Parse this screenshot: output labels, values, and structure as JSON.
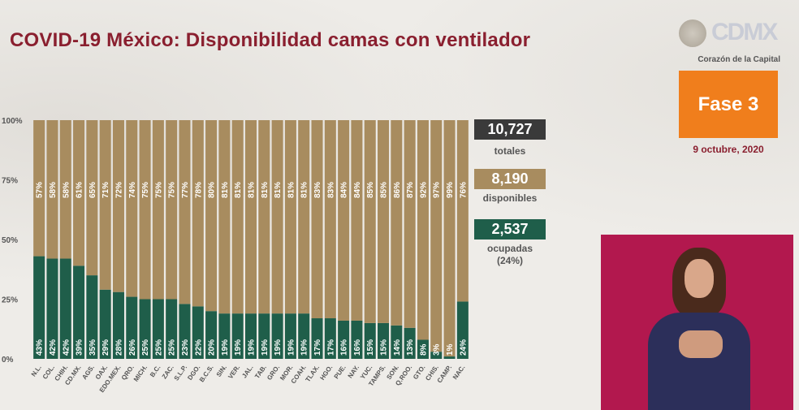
{
  "header": {
    "title": "COVID-19 México: Disponibilidad camas con ventilador",
    "logo_subtitle": "Corazón de la Capital",
    "logo_text": "CDMX",
    "phase": "Fase 3",
    "date": "9 octubre, 2020"
  },
  "stats": {
    "total_value": "10,727",
    "total_label": "totales",
    "available_value": "8,190",
    "available_label": "disponibles",
    "occupied_value": "2,537",
    "occupied_label": "ocupadas",
    "occupied_pct": "(24%)"
  },
  "colors": {
    "occupied": "#1f5e4a",
    "available": "#a88c5f",
    "title": "#8a1f2f",
    "total_box": "#3a3a3a",
    "phase_box": "#f07e1c",
    "interpreter_bg": "#b2184e"
  },
  "chart_data": {
    "type": "bar",
    "stacked": true,
    "orientation": "vertical",
    "categories": [
      "N.L.",
      "COL.",
      "CHIH.",
      "CD.MX.",
      "AGS.",
      "OAX.",
      "EDO.MEX.",
      "QRO.",
      "MICH.",
      "B.C.",
      "ZAC.",
      "S.L.P.",
      "DGO.",
      "B.C.S.",
      "SIN.",
      "VER.",
      "JAL.",
      "TAB.",
      "GRO.",
      "MOR.",
      "COAH.",
      "TLAX.",
      "HGO.",
      "PUE.",
      "NAY.",
      "YUC.",
      "TAMPS.",
      "SON.",
      "Q.ROO.",
      "GTO.",
      "CHIS.",
      "CAMP.",
      "NAC."
    ],
    "series": [
      {
        "values": [
          43,
          42,
          42,
          39,
          35,
          29,
          28,
          26,
          25,
          25,
          25,
          23,
          22,
          20,
          19,
          19,
          19,
          19,
          19,
          19,
          19,
          17,
          17,
          16,
          16,
          15,
          15,
          14,
          13,
          8,
          3,
          1,
          24
        ]
      },
      {
        "values": [
          57,
          58,
          58,
          61,
          65,
          71,
          72,
          74,
          75,
          75,
          75,
          77,
          78,
          80,
          81,
          81,
          81,
          81,
          81,
          81,
          81,
          83,
          83,
          84,
          84,
          85,
          85,
          86,
          87,
          92,
          97,
          99,
          76
        ]
      }
    ],
    "y_ticks": [
      "0%",
      "25%",
      "50%",
      "75%",
      "100%"
    ],
    "ylim": [
      0,
      100
    ],
    "grid": false
  }
}
